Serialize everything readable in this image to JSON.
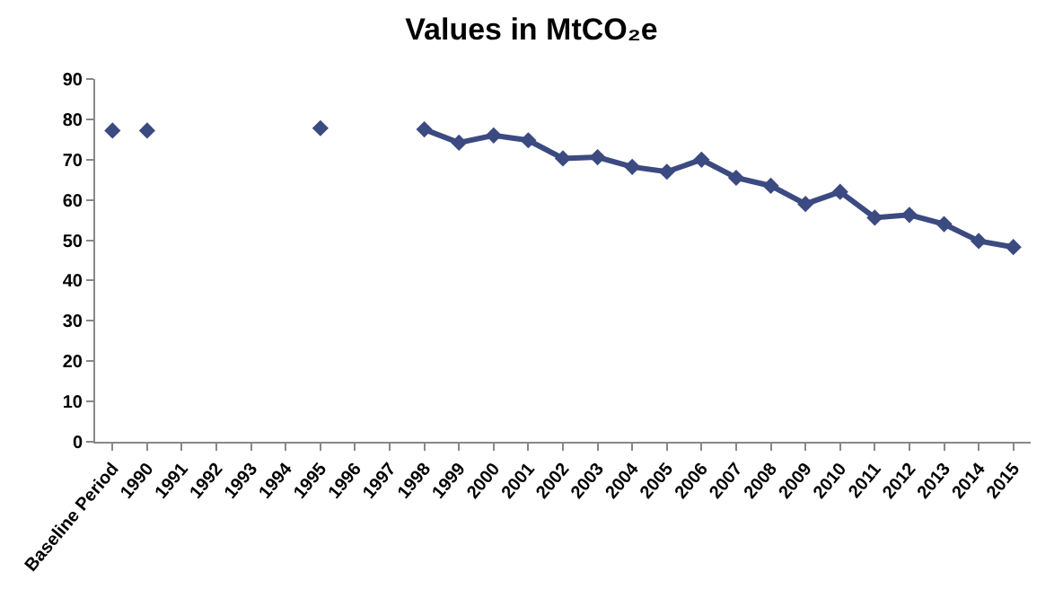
{
  "chart_data": {
    "type": "line",
    "title": "Values in MtCO₂e",
    "categories": [
      "Baseline Period",
      "1990",
      "1991",
      "1992",
      "1993",
      "1994",
      "1995",
      "1996",
      "1997",
      "1998",
      "1999",
      "2000",
      "2001",
      "2002",
      "2003",
      "2004",
      "2005",
      "2006",
      "2007",
      "2008",
      "2009",
      "2010",
      "2011",
      "2012",
      "2013",
      "2014",
      "2015"
    ],
    "series": [
      {
        "type": "scatter",
        "color": "#3b4a80",
        "values": [
          77.2,
          77.2,
          null,
          null,
          null,
          null,
          77.8,
          null,
          null,
          null,
          null,
          null,
          null,
          null,
          null,
          null,
          null,
          null,
          null,
          null,
          null,
          null,
          null,
          null,
          null,
          null,
          null
        ]
      },
      {
        "color": "#3b4a80",
        "values": [
          null,
          null,
          null,
          null,
          null,
          null,
          null,
          null,
          null,
          77.5,
          74.2,
          76,
          74.8,
          70.3,
          70.6,
          68.2,
          67,
          70,
          65.5,
          63.5,
          59,
          62,
          55.6,
          56.3,
          54,
          49.8,
          48.3
        ]
      }
    ],
    "ylim": [
      0,
      90
    ],
    "yticks": [
      0,
      10,
      20,
      30,
      40,
      50,
      60,
      70,
      80,
      90
    ],
    "grid": false,
    "marker": "diamond",
    "line_style": "solid"
  }
}
